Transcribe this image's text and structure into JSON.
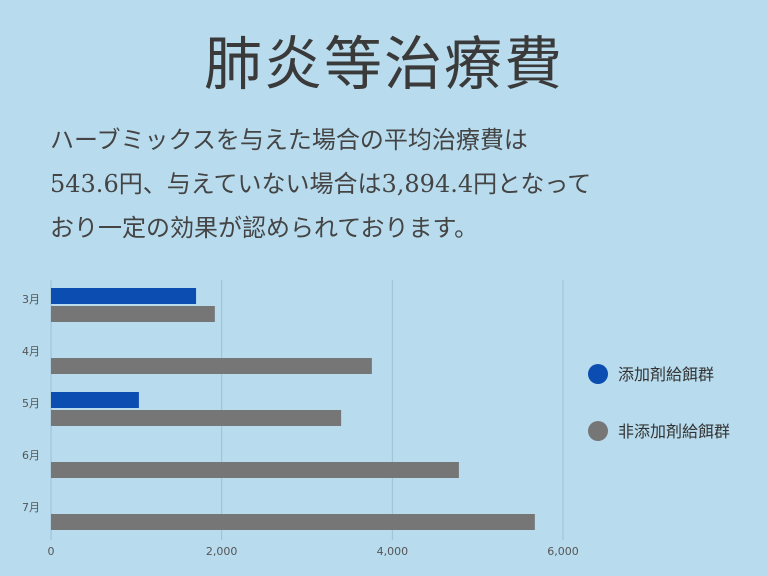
{
  "title": "肺炎等治療費",
  "description": [
    "ハーブミックスを与えた場合の平均治療費は",
    "543.6円、与えていない場合は3,894.4円となって",
    "おり一定の効果が認められております。"
  ],
  "chart_data": {
    "type": "bar",
    "orientation": "horizontal",
    "categories": [
      "3月",
      "4月",
      "5月",
      "6月",
      "7月"
    ],
    "series": [
      {
        "name": "添加剤給餌群",
        "color": "#0b4db0",
        "values": [
          1700,
          null,
          1030,
          null,
          null
        ]
      },
      {
        "name": "非添加剤給餌群",
        "color": "#767676",
        "values": [
          1920,
          3760,
          3400,
          4780,
          5670
        ]
      }
    ],
    "xlim": [
      0,
      6000
    ],
    "xticks": [
      0,
      2000,
      4000,
      6000
    ],
    "xtick_labels": [
      "0",
      "2,000",
      "4,000",
      "6,000"
    ],
    "grid": true,
    "legend_position": "right"
  }
}
